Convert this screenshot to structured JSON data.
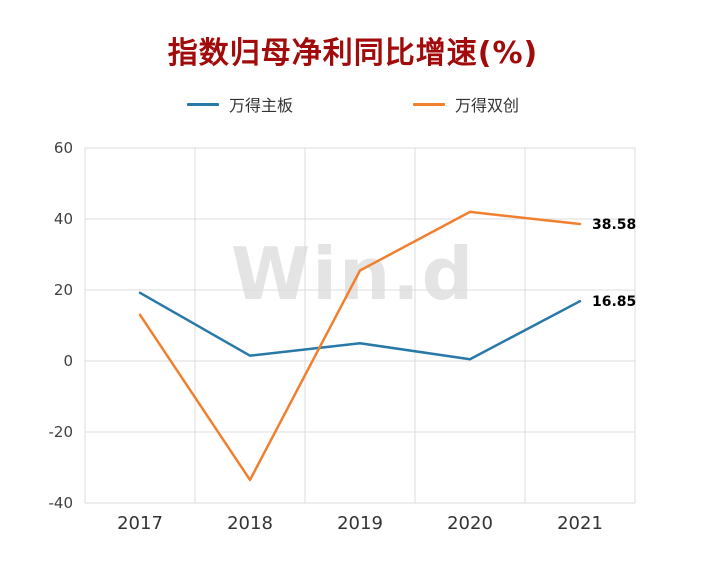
{
  "title": "指数归母净利同比增速(%)",
  "watermark": "Win.d",
  "colors": {
    "title": "#a20b0b",
    "grid": "#dcdcdc",
    "axis_text": "#404040",
    "x_text": "#333333",
    "end_label_text": "#000000",
    "watermark": "#e4e4e4"
  },
  "chart_data": {
    "type": "line",
    "title": "指数归母净利同比增速(%)",
    "x": [
      "2017",
      "2018",
      "2019",
      "2020",
      "2021"
    ],
    "series": [
      {
        "name": "万得主板",
        "color": "#2878a8",
        "values": [
          19.2,
          1.5,
          5.0,
          0.5,
          16.85
        ],
        "end_label": "16.85"
      },
      {
        "name": "万得双创",
        "color": "#f08030",
        "values": [
          13.0,
          -33.5,
          25.5,
          42.0,
          38.58
        ],
        "end_label": "38.58"
      }
    ],
    "xlabel": "",
    "ylabel": "",
    "ylim": [
      -40,
      60
    ],
    "yticks": [
      60,
      40,
      20,
      0,
      -20,
      -40
    ],
    "grid": true,
    "legend_position": "top"
  }
}
